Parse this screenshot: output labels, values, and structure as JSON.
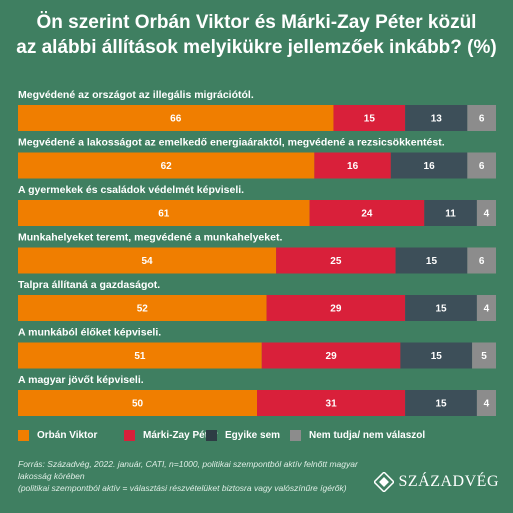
{
  "title_line1": "Ön szerint Orbán Viktor és Márki-Zay Péter közül",
  "title_line2": "az alábbi állítások melyikükre jellemzőek inkább? (%)",
  "colors": {
    "background": "#3f7f61",
    "orban": "#f07e00",
    "mzp": "#d9203a",
    "egyik": "#3d4f59",
    "nemtudja": "#8c8c8c"
  },
  "legend": [
    "Orbán Viktor",
    "Márki-Zay Péter",
    "Egyike sem",
    "Nem tudja/ nem válaszol"
  ],
  "source_line1": "Forrás: Századvég, 2022. január, CATI, n=1000, politikai szempontból aktív felnőtt magyar lakosság körében",
  "source_line2": "(politikai szempontból aktív = választási részvételüket biztosra vagy valószínűre ígérők)",
  "logo_text": "SZÁZADVÉG",
  "chart_data": {
    "type": "bar",
    "orientation": "horizontal",
    "stacked": true,
    "xlim": [
      0,
      100
    ],
    "categories": [
      "Megvédené az országot az illegális migrációtól.",
      "Megvédené a lakosságot az emelkedő energiaáraktól, megvédené a rezsicsökkentést.",
      "A gyermekek és családok védelmét képviseli.",
      "Munkahelyeket teremt, megvédené a munkahelyeket.",
      "Talpra állítaná a gazdaságot.",
      "A munkából élőket képviseli.",
      "A magyar jövőt képviseli."
    ],
    "series": [
      {
        "name": "Orbán Viktor",
        "values": [
          66,
          62,
          61,
          54,
          52,
          51,
          50
        ]
      },
      {
        "name": "Márki-Zay Péter",
        "values": [
          15,
          16,
          24,
          25,
          29,
          29,
          31
        ]
      },
      {
        "name": "Egyike sem",
        "values": [
          13,
          16,
          11,
          15,
          15,
          15,
          15
        ]
      },
      {
        "name": "Nem tudja/ nem válaszol",
        "values": [
          6,
          6,
          4,
          6,
          4,
          5,
          4
        ]
      }
    ],
    "legend_position": "bottom"
  }
}
